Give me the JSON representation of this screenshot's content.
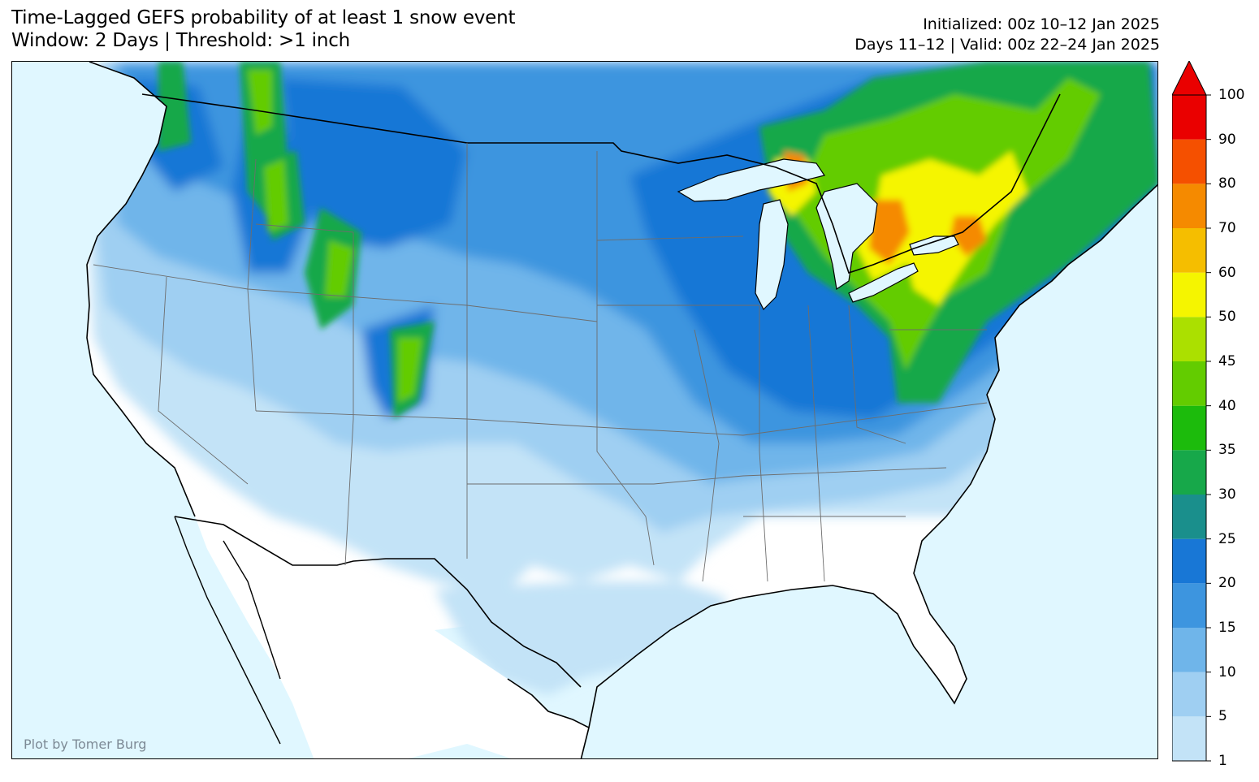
{
  "header": {
    "title_line1": "Time-Lagged GEFS probability of at least 1 snow event",
    "title_line2": "Window: 2 Days | Threshold: >1 inch",
    "init_line": "Initialized: 00z 10–12 Jan 2025",
    "valid_line": "Days 11–12 | Valid: 00z 22–24 Jan 2025"
  },
  "credit": "Plot by Tomer Burg",
  "colorbar": {
    "unit": "%",
    "ticks": [
      "1",
      "5",
      "10",
      "15",
      "20",
      "25",
      "30",
      "35",
      "40",
      "45",
      "50",
      "60",
      "70",
      "80",
      "90",
      "100"
    ],
    "colors": [
      "#c3e3f7",
      "#9fcff2",
      "#6fb5ea",
      "#3d95df",
      "#1877d6",
      "#1a8f8c",
      "#17a84a",
      "#1cbb0c",
      "#63cc00",
      "#abe000",
      "#f5f500",
      "#f5be00",
      "#f58a00",
      "#f55000",
      "#ea0000"
    ],
    "extend_arrow_color": "#ea0000"
  },
  "map": {
    "ocean_color": "#e0f7ff",
    "land_color": "#ffffff"
  }
}
